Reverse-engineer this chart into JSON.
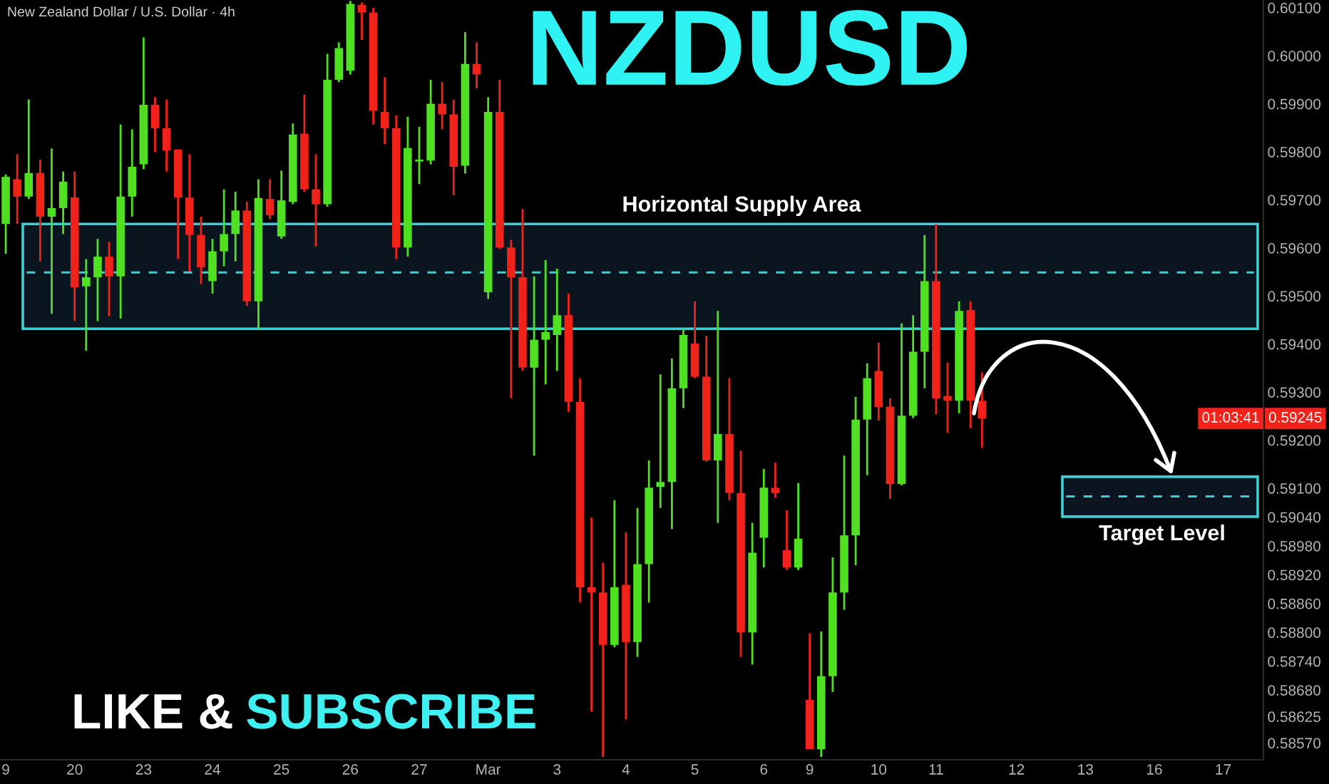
{
  "chart_data": {
    "type": "candlestick",
    "title": "NZDUSD",
    "subtitle": "New Zealand Dollar / U.S. Dollar · 4h",
    "categories": [
      "9",
      null,
      null,
      null,
      null,
      null,
      "20",
      null,
      null,
      null,
      null,
      null,
      "23",
      null,
      null,
      null,
      null,
      null,
      "24",
      null,
      null,
      null,
      null,
      null,
      "25",
      null,
      null,
      null,
      null,
      null,
      "26",
      null,
      null,
      null,
      null,
      null,
      "27",
      null,
      null,
      null,
      null,
      null,
      "Mar",
      null,
      null,
      null,
      null,
      null,
      "3",
      null,
      null,
      null,
      null,
      null,
      "4",
      null,
      null,
      null,
      null,
      null,
      "5",
      null,
      null,
      null,
      null,
      null,
      "6",
      null,
      null,
      null,
      "9",
      null,
      null,
      null,
      null,
      null,
      "10",
      null,
      null,
      null,
      null,
      "11",
      null,
      null,
      null,
      null,
      null,
      null,
      "12",
      null,
      null,
      null,
      null,
      null,
      "13",
      null,
      null,
      null,
      null,
      null,
      "16",
      null,
      null,
      null,
      null,
      null,
      "17",
      null,
      null,
      null
    ],
    "ohlc": [
      [
        0.5965,
        0.59753,
        0.59588,
        0.59748
      ],
      [
        0.59743,
        0.59795,
        0.5965,
        0.59707
      ],
      [
        0.59707,
        0.59909,
        0.59702,
        0.59756
      ],
      [
        0.59756,
        0.59784,
        0.59572,
        0.59665
      ],
      [
        0.59665,
        0.59807,
        0.59463,
        0.59683
      ],
      [
        0.59683,
        0.59759,
        0.59629,
        0.59738
      ],
      [
        0.59705,
        0.59759,
        0.59448,
        0.59518
      ],
      [
        0.5952,
        0.59577,
        0.59386,
        0.59539
      ],
      [
        0.59539,
        0.59619,
        0.59448,
        0.59582
      ],
      [
        0.59582,
        0.59613,
        0.59458,
        0.59541
      ],
      [
        0.59541,
        0.59857,
        0.59453,
        0.59707
      ],
      [
        0.59707,
        0.59847,
        0.59665,
        0.59769
      ],
      [
        0.59774,
        0.60038,
        0.59764,
        0.59898
      ],
      [
        0.59898,
        0.59914,
        0.598,
        0.59849
      ],
      [
        0.59849,
        0.59909,
        0.59759,
        0.59803
      ],
      [
        0.59805,
        0.59805,
        0.59577,
        0.59705
      ],
      [
        0.59705,
        0.59795,
        0.59551,
        0.59627
      ],
      [
        0.59627,
        0.59665,
        0.59525,
        0.5956
      ],
      [
        0.59531,
        0.59619,
        0.59505,
        0.59593
      ],
      [
        0.59593,
        0.59722,
        0.59562,
        0.59629
      ],
      [
        0.59629,
        0.59717,
        0.59572,
        0.59678
      ],
      [
        0.59678,
        0.59696,
        0.59479,
        0.59489
      ],
      [
        0.59489,
        0.59743,
        0.59432,
        0.59704
      ],
      [
        0.59702,
        0.59743,
        0.5966,
        0.59668
      ],
      [
        0.59624,
        0.59761,
        0.59619,
        0.59699
      ],
      [
        0.59696,
        0.59859,
        0.59691,
        0.59836
      ],
      [
        0.59838,
        0.59919,
        0.59717,
        0.59722
      ],
      [
        0.59722,
        0.59795,
        0.59603,
        0.59691
      ],
      [
        0.59691,
        0.60004,
        0.59686,
        0.5995
      ],
      [
        0.5995,
        0.60028,
        0.59945,
        0.60016
      ],
      [
        0.59969,
        0.60114,
        0.59961,
        0.60108
      ],
      [
        0.60106,
        0.60111,
        0.60033,
        0.6009
      ],
      [
        0.6009,
        0.601,
        0.59857,
        0.59886
      ],
      [
        0.59883,
        0.59955,
        0.59816,
        0.59849
      ],
      [
        0.59849,
        0.59876,
        0.59577,
        0.59601
      ],
      [
        0.59601,
        0.59873,
        0.59582,
        0.59808
      ],
      [
        0.5978,
        0.59852,
        0.59733,
        0.59784
      ],
      [
        0.59782,
        0.5995,
        0.59774,
        0.599
      ],
      [
        0.599,
        0.59945,
        0.59847,
        0.59878
      ],
      [
        0.59878,
        0.59909,
        0.5971,
        0.59769
      ],
      [
        0.59771,
        0.60049,
        0.59755,
        0.59983
      ],
      [
        0.59983,
        0.60028,
        0.59932,
        0.59961
      ],
      [
        0.59508,
        0.59914,
        0.59494,
        0.59883
      ],
      [
        0.59883,
        0.5995,
        0.59598,
        0.59601
      ],
      [
        0.59601,
        0.59617,
        0.59287,
        0.59539
      ],
      [
        0.59539,
        0.59681,
        0.59344,
        0.59351
      ],
      [
        0.59351,
        0.59541,
        0.59168,
        0.59409
      ],
      [
        0.59409,
        0.59575,
        0.59316,
        0.59425
      ],
      [
        0.59419,
        0.59557,
        0.59344,
        0.5946
      ],
      [
        0.5946,
        0.59505,
        0.59259,
        0.5928
      ],
      [
        0.5928,
        0.59329,
        0.58862,
        0.58894
      ],
      [
        0.58894,
        0.59039,
        0.58635,
        0.58883
      ],
      [
        0.58883,
        0.58945,
        0.58541,
        0.58774
      ],
      [
        0.58774,
        0.59075,
        0.58769,
        0.58894
      ],
      [
        0.58899,
        0.59008,
        0.58619,
        0.5878
      ],
      [
        0.5878,
        0.59059,
        0.58749,
        0.58942
      ],
      [
        0.58942,
        0.59158,
        0.58862,
        0.59101
      ],
      [
        0.59103,
        0.59337,
        0.59059,
        0.59113
      ],
      [
        0.59113,
        0.5937,
        0.59015,
        0.59308
      ],
      [
        0.59308,
        0.59432,
        0.59267,
        0.59419
      ],
      [
        0.59401,
        0.59489,
        0.59329,
        0.59332
      ],
      [
        0.59332,
        0.59417,
        0.59155,
        0.59158
      ],
      [
        0.59158,
        0.59469,
        0.59028,
        0.59213
      ],
      [
        0.59213,
        0.59329,
        0.59075,
        0.5909
      ],
      [
        0.5909,
        0.59178,
        0.58749,
        0.588
      ],
      [
        0.588,
        0.59028,
        0.58733,
        0.58966
      ],
      [
        0.58997,
        0.5914,
        0.58935,
        0.59101
      ],
      [
        0.59101,
        0.59153,
        0.5908,
        0.5909
      ],
      [
        0.58971,
        0.59054,
        0.5893,
        0.58935
      ],
      [
        0.58935,
        0.59111,
        0.5893,
        0.58995
      ],
      [
        0.5866,
        0.58798,
        0.58557,
        0.58557
      ],
      [
        0.58557,
        0.58802,
        0.58541,
        0.58709
      ],
      [
        0.58709,
        0.58956,
        0.58676,
        0.58883
      ],
      [
        0.58883,
        0.59168,
        0.58847,
        0.59002
      ],
      [
        0.59002,
        0.5929,
        0.5894,
        0.59243
      ],
      [
        0.59243,
        0.5936,
        0.59127,
        0.59329
      ],
      [
        0.59344,
        0.59403,
        0.59241,
        0.59269
      ],
      [
        0.5927,
        0.59287,
        0.59078,
        0.59109
      ],
      [
        0.59109,
        0.59443,
        0.59106,
        0.59251
      ],
      [
        0.59251,
        0.5946,
        0.59246,
        0.59384
      ],
      [
        0.59384,
        0.59627,
        0.59308,
        0.59531
      ],
      [
        0.59531,
        0.5965,
        0.59254,
        0.59287
      ],
      [
        0.59292,
        0.59362,
        0.59215,
        0.59282
      ],
      [
        0.59282,
        0.59489,
        0.59256,
        0.59469
      ],
      [
        0.59471,
        0.59489,
        0.59225,
        0.59282
      ],
      [
        0.59282,
        0.59341,
        0.59184,
        0.59245
      ],
      null,
      null,
      null,
      null,
      null,
      null,
      null,
      null,
      null,
      null,
      null,
      null,
      null,
      null,
      null,
      null,
      null,
      null,
      null,
      null,
      null,
      null,
      null,
      null
    ],
    "colors": [
      "#4fe021",
      "#f0221a",
      "#4fe021",
      "#f0221a",
      "#4fe021",
      "#4fe021",
      "#f0221a",
      "#4fe021",
      "#4fe021",
      "#f0221a",
      "#4fe021",
      "#4fe021",
      "#4fe021",
      "#f0221a",
      "#f0221a",
      "#f0221a",
      "#f0221a",
      "#f0221a",
      "#4fe021",
      "#4fe021",
      "#4fe021",
      "#f0221a",
      "#4fe021",
      "#f0221a",
      "#4fe021",
      "#4fe021",
      "#f0221a",
      "#f0221a",
      "#4fe021",
      "#4fe021",
      "#4fe021",
      "#f0221a",
      "#f0221a",
      "#f0221a",
      "#f0221a",
      "#4fe021",
      "#4fe021",
      "#4fe021",
      "#f0221a",
      "#f0221a",
      "#4fe021",
      "#f0221a",
      "#4fe021",
      "#f0221a",
      "#f0221a",
      "#f0221a",
      "#4fe021",
      "#4fe021",
      "#4fe021",
      "#f0221a",
      "#f0221a",
      "#f0221a",
      "#f0221a",
      "#4fe021",
      "#f0221a",
      "#4fe021",
      "#4fe021",
      "#4fe021",
      "#4fe021",
      "#4fe021",
      "#f0221a",
      "#f0221a",
      "#4fe021",
      "#f0221a",
      "#f0221a",
      "#4fe021",
      "#4fe021",
      "#f0221a",
      "#f0221a",
      "#4fe021",
      "#f0221a",
      "#4fe021",
      "#4fe021",
      "#4fe021",
      "#4fe021",
      "#4fe021",
      "#f0221a",
      "#f0221a",
      "#4fe021",
      "#4fe021",
      "#4fe021",
      "#f0221a",
      "#f0221a",
      "#4fe021",
      "#f0221a",
      "#f0221a",
      null,
      null,
      null,
      null,
      null,
      null,
      null,
      null,
      null,
      null,
      null,
      null,
      null,
      null,
      null,
      null,
      null,
      null,
      null,
      null,
      null,
      null,
      null,
      null
    ],
    "ylim": [
      0.58535,
      0.60116
    ],
    "yticks": [
      {
        "value": 0.601,
        "label": "0.60100"
      },
      {
        "value": 0.6,
        "label": "0.60000"
      },
      {
        "value": 0.599,
        "label": "0.59900"
      },
      {
        "value": 0.598,
        "label": "0.59800"
      },
      {
        "value": 0.597,
        "label": "0.59700"
      },
      {
        "value": 0.596,
        "label": "0.59600"
      },
      {
        "value": 0.595,
        "label": "0.59500"
      },
      {
        "value": 0.594,
        "label": "0.59400"
      },
      {
        "value": 0.593,
        "label": "0.59300"
      },
      {
        "value": 0.592,
        "label": "0.59200"
      },
      {
        "value": 0.591,
        "label": "0.59100"
      },
      {
        "value": 0.5904,
        "label": "0.59040"
      },
      {
        "value": 0.5898,
        "label": "0.58980"
      },
      {
        "value": 0.5892,
        "label": "0.58920"
      },
      {
        "value": 0.5886,
        "label": "0.58860"
      },
      {
        "value": 0.588,
        "label": "0.58800"
      },
      {
        "value": 0.5874,
        "label": "0.58740"
      },
      {
        "value": 0.5868,
        "label": "0.58680"
      },
      {
        "value": 0.58625,
        "label": "0.58625"
      },
      {
        "value": 0.5857,
        "label": "0.58570"
      }
    ],
    "bands": [
      {
        "axis": "y",
        "from": 0.59432,
        "to": 0.5965,
        "label": "Horizontal Supply Area",
        "color": "#3ecfd2"
      },
      {
        "axis": "y",
        "from": 0.59041,
        "to": 0.59124,
        "label": "Target Level",
        "color": "#3ecfd2"
      }
    ],
    "ref_lines": [
      {
        "axis": "y",
        "value": 0.59549,
        "color": "#3ecfd2",
        "line_style": "dashed"
      },
      {
        "axis": "y",
        "value": 0.59083,
        "color": "#3ecfd2",
        "line_style": "dashed"
      }
    ],
    "annotations": [
      "LIKE &",
      "SUBSCRIBE",
      {
        "text": "0.59245",
        "y": 0.59245
      },
      "01:03:41"
    ]
  }
}
